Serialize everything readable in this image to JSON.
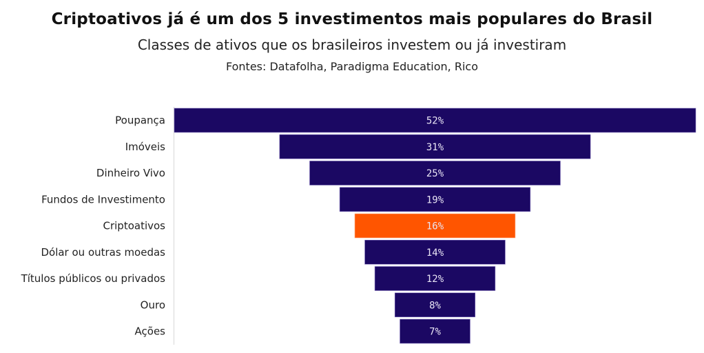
{
  "chart_data": {
    "type": "bar",
    "subtype": "funnel",
    "title": "Criptoativos já é um dos 5 investimentos mais populares do Brasil",
    "subtitle": "Classes de ativos que os brasileiros investem ou já investiram",
    "source": "Fontes: Datafolha, Paradigma Education, Rico",
    "xlabel": "",
    "ylabel": "",
    "unit": "%",
    "categories": [
      "Poupança",
      "Imóveis",
      "Dinheiro Vivo",
      "Fundos de Investimento",
      "Criptoativos",
      "Dólar ou outras moedas",
      "Títulos públicos ou privados",
      "Ouro",
      "Ações"
    ],
    "values": [
      52,
      31,
      25,
      19,
      16,
      14,
      12,
      8,
      7
    ],
    "labels": [
      "52%",
      "31%",
      "25%",
      "19%",
      "16%",
      "14%",
      "12%",
      "8%",
      "7%"
    ],
    "highlight": "Criptoativos",
    "colors": {
      "default": "#1b0863",
      "highlight": "#ff5500",
      "label": "#e8e4f4"
    },
    "xlim": [
      0,
      52
    ],
    "grid": false,
    "legend": "none"
  }
}
